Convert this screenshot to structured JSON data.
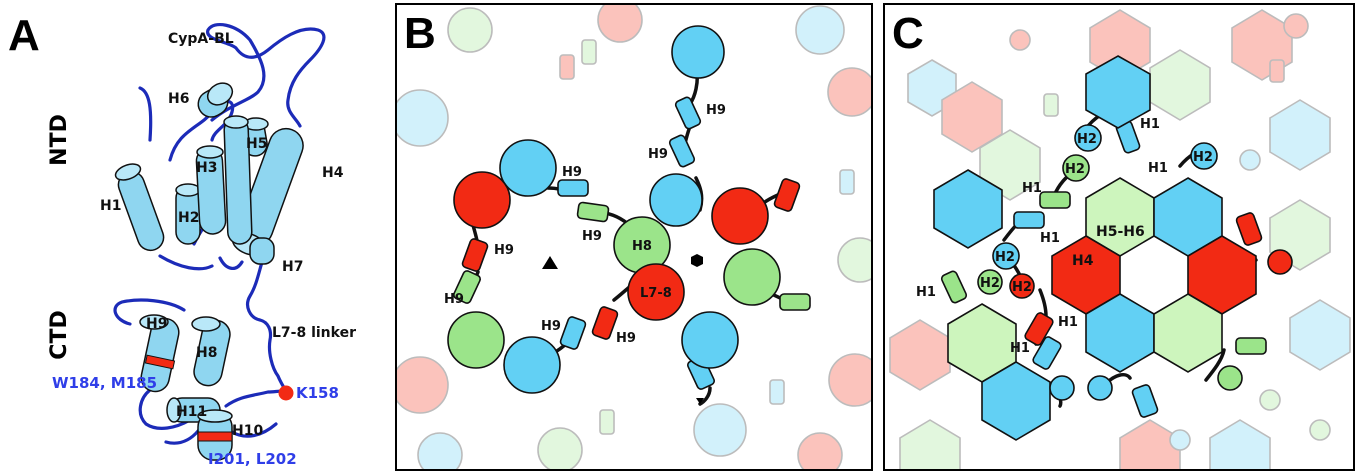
{
  "panels": {
    "a": {
      "letter": "A",
      "domain_ntd": "NTD",
      "domain_ctd": "CTD",
      "cypa_bl": "CypA-BL",
      "helices": {
        "h1": "H1",
        "h2": "H2",
        "h3": "H3",
        "h4": "H4",
        "h5": "H5",
        "h6": "H6",
        "h7": "H7",
        "h8": "H8",
        "h9": "H9",
        "h10": "H10",
        "h11": "H11"
      },
      "linker": "L7-8 linker",
      "res_k158": "K158",
      "res_w184": "W184, M185",
      "res_i201": "I201, L202"
    },
    "b": {
      "letter": "B",
      "h9": "H9",
      "h8": "H8",
      "l78": "L7-8",
      "threefold_symbol": "▲",
      "sixfold_symbol": "⬢"
    },
    "c": {
      "letter": "C",
      "h1": "H1",
      "h2": "H2",
      "h4": "H4",
      "h5h6": "H5-H6"
    }
  },
  "colors": {
    "cyan": "#62d0f4",
    "green": "#9be48a",
    "red": "#f22a14",
    "loop_blue": "#1c2bb8",
    "label_blue": "#2f3ee8"
  }
}
